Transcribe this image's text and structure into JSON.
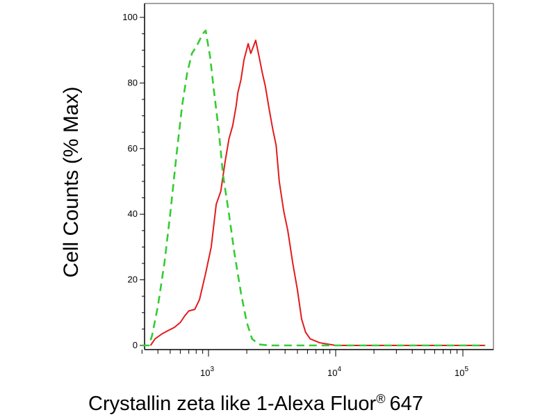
{
  "chart_data": {
    "type": "line",
    "xlabel": "Crystallin zeta like 1-Alexa Fluor",
    "xlabel_mark": "®",
    "xlabel_suffix": "647",
    "ylabel": "Cell Counts (% Max)",
    "x_scale": "log",
    "xlim": [
      300,
      150000
    ],
    "ylim": [
      0,
      100
    ],
    "y_ticks": [
      0,
      20,
      40,
      60,
      80,
      100
    ],
    "x_major_ticks": [
      1000,
      10000,
      100000
    ],
    "x_tick_labels": [
      {
        "base": "10",
        "exp": "3"
      },
      {
        "base": "10",
        "exp": "4"
      },
      {
        "base": "10",
        "exp": "5"
      }
    ],
    "grid": false,
    "series": [
      {
        "color": "#e31a1c",
        "dash": "solid",
        "points": [
          [
            350,
            0
          ],
          [
            380,
            2
          ],
          [
            430,
            3.5
          ],
          [
            480,
            4.5
          ],
          [
            540,
            5.5
          ],
          [
            600,
            7
          ],
          [
            650,
            9
          ],
          [
            700,
            10.5
          ],
          [
            780,
            11
          ],
          [
            850,
            14
          ],
          [
            950,
            22
          ],
          [
            1050,
            30
          ],
          [
            1150,
            43
          ],
          [
            1250,
            47
          ],
          [
            1350,
            56
          ],
          [
            1450,
            63
          ],
          [
            1550,
            67
          ],
          [
            1650,
            73
          ],
          [
            1700,
            77
          ],
          [
            1800,
            81
          ],
          [
            1900,
            87
          ],
          [
            2050,
            92
          ],
          [
            2150,
            89
          ],
          [
            2250,
            91
          ],
          [
            2350,
            93
          ],
          [
            2500,
            88
          ],
          [
            2650,
            83
          ],
          [
            2800,
            79
          ],
          [
            3000,
            72
          ],
          [
            3200,
            66
          ],
          [
            3400,
            61
          ],
          [
            3600,
            50
          ],
          [
            3900,
            41
          ],
          [
            4200,
            35
          ],
          [
            4600,
            25
          ],
          [
            5000,
            17
          ],
          [
            5400,
            8
          ],
          [
            5800,
            4
          ],
          [
            6300,
            2
          ],
          [
            7500,
            0.8
          ],
          [
            10000,
            0
          ],
          [
            150000,
            0
          ]
        ]
      },
      {
        "color": "#33cc33",
        "dash": "dashed",
        "points": [
          [
            300,
            0
          ],
          [
            340,
            0
          ],
          [
            360,
            3
          ],
          [
            400,
            12
          ],
          [
            450,
            25
          ],
          [
            500,
            40
          ],
          [
            560,
            58
          ],
          [
            620,
            73
          ],
          [
            680,
            83
          ],
          [
            740,
            89
          ],
          [
            800,
            91
          ],
          [
            850,
            93
          ],
          [
            900,
            95
          ],
          [
            950,
            96
          ],
          [
            1030,
            88
          ],
          [
            1100,
            78
          ],
          [
            1200,
            66
          ],
          [
            1300,
            52
          ],
          [
            1450,
            40
          ],
          [
            1600,
            28
          ],
          [
            1800,
            16
          ],
          [
            2000,
            7
          ],
          [
            2200,
            2
          ],
          [
            2500,
            0.3
          ],
          [
            3000,
            0
          ],
          [
            150000,
            0
          ]
        ]
      }
    ]
  }
}
